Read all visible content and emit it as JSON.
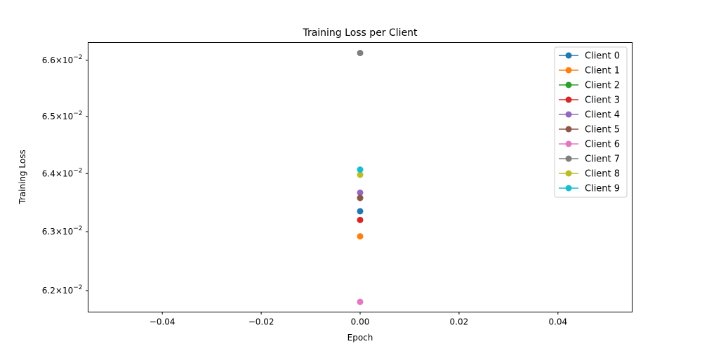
{
  "chart_data": {
    "type": "line",
    "title": "Training Loss per Client",
    "xlabel": "Epoch",
    "ylabel": "Training Loss",
    "y_scale": "log",
    "xlim": [
      -0.055,
      0.055
    ],
    "ylim": [
      0.06164,
      0.06632
    ],
    "x_ticks": [
      -0.04,
      -0.02,
      0.0,
      0.02,
      0.04
    ],
    "x_tick_labels": [
      "−0.04",
      "−0.02",
      "0.00",
      "0.02",
      "0.04"
    ],
    "y_ticks": [
      0.062,
      0.063,
      0.064,
      0.065,
      0.066
    ],
    "y_tick_labels": [
      {
        "mantissa": "6.2",
        "base": "10",
        "exp": "−2"
      },
      {
        "mantissa": "6.3",
        "base": "10",
        "exp": "−2"
      },
      {
        "mantissa": "6.4",
        "base": "10",
        "exp": "−2"
      },
      {
        "mantissa": "6.5",
        "base": "10",
        "exp": "−2"
      },
      {
        "mantissa": "6.6",
        "base": "10",
        "exp": "−2"
      }
    ],
    "grid": false,
    "legend_position": "top-right",
    "series": [
      {
        "name": "Client 0",
        "color": "#1f77b4",
        "x": [
          0
        ],
        "y": [
          0.06335
        ]
      },
      {
        "name": "Client 1",
        "color": "#ff7f0e",
        "x": [
          0
        ],
        "y": [
          0.06292
        ]
      },
      {
        "name": "Client 2",
        "color": "#2ca02c",
        "x": [
          0
        ],
        "y": [
          0.06358
        ]
      },
      {
        "name": "Client 3",
        "color": "#d62728",
        "x": [
          0
        ],
        "y": [
          0.0632
        ]
      },
      {
        "name": "Client 4",
        "color": "#9467bd",
        "x": [
          0
        ],
        "y": [
          0.06367
        ]
      },
      {
        "name": "Client 5",
        "color": "#8c564b",
        "x": [
          0
        ],
        "y": [
          0.06358
        ]
      },
      {
        "name": "Client 6",
        "color": "#e377c2",
        "x": [
          0
        ],
        "y": [
          0.06181
        ]
      },
      {
        "name": "Client 7",
        "color": "#7f7f7f",
        "x": [
          0
        ],
        "y": [
          0.06613
        ]
      },
      {
        "name": "Client 8",
        "color": "#bcbd22",
        "x": [
          0
        ],
        "y": [
          0.06398
        ]
      },
      {
        "name": "Client 9",
        "color": "#17becf",
        "x": [
          0
        ],
        "y": [
          0.06407
        ]
      }
    ]
  }
}
